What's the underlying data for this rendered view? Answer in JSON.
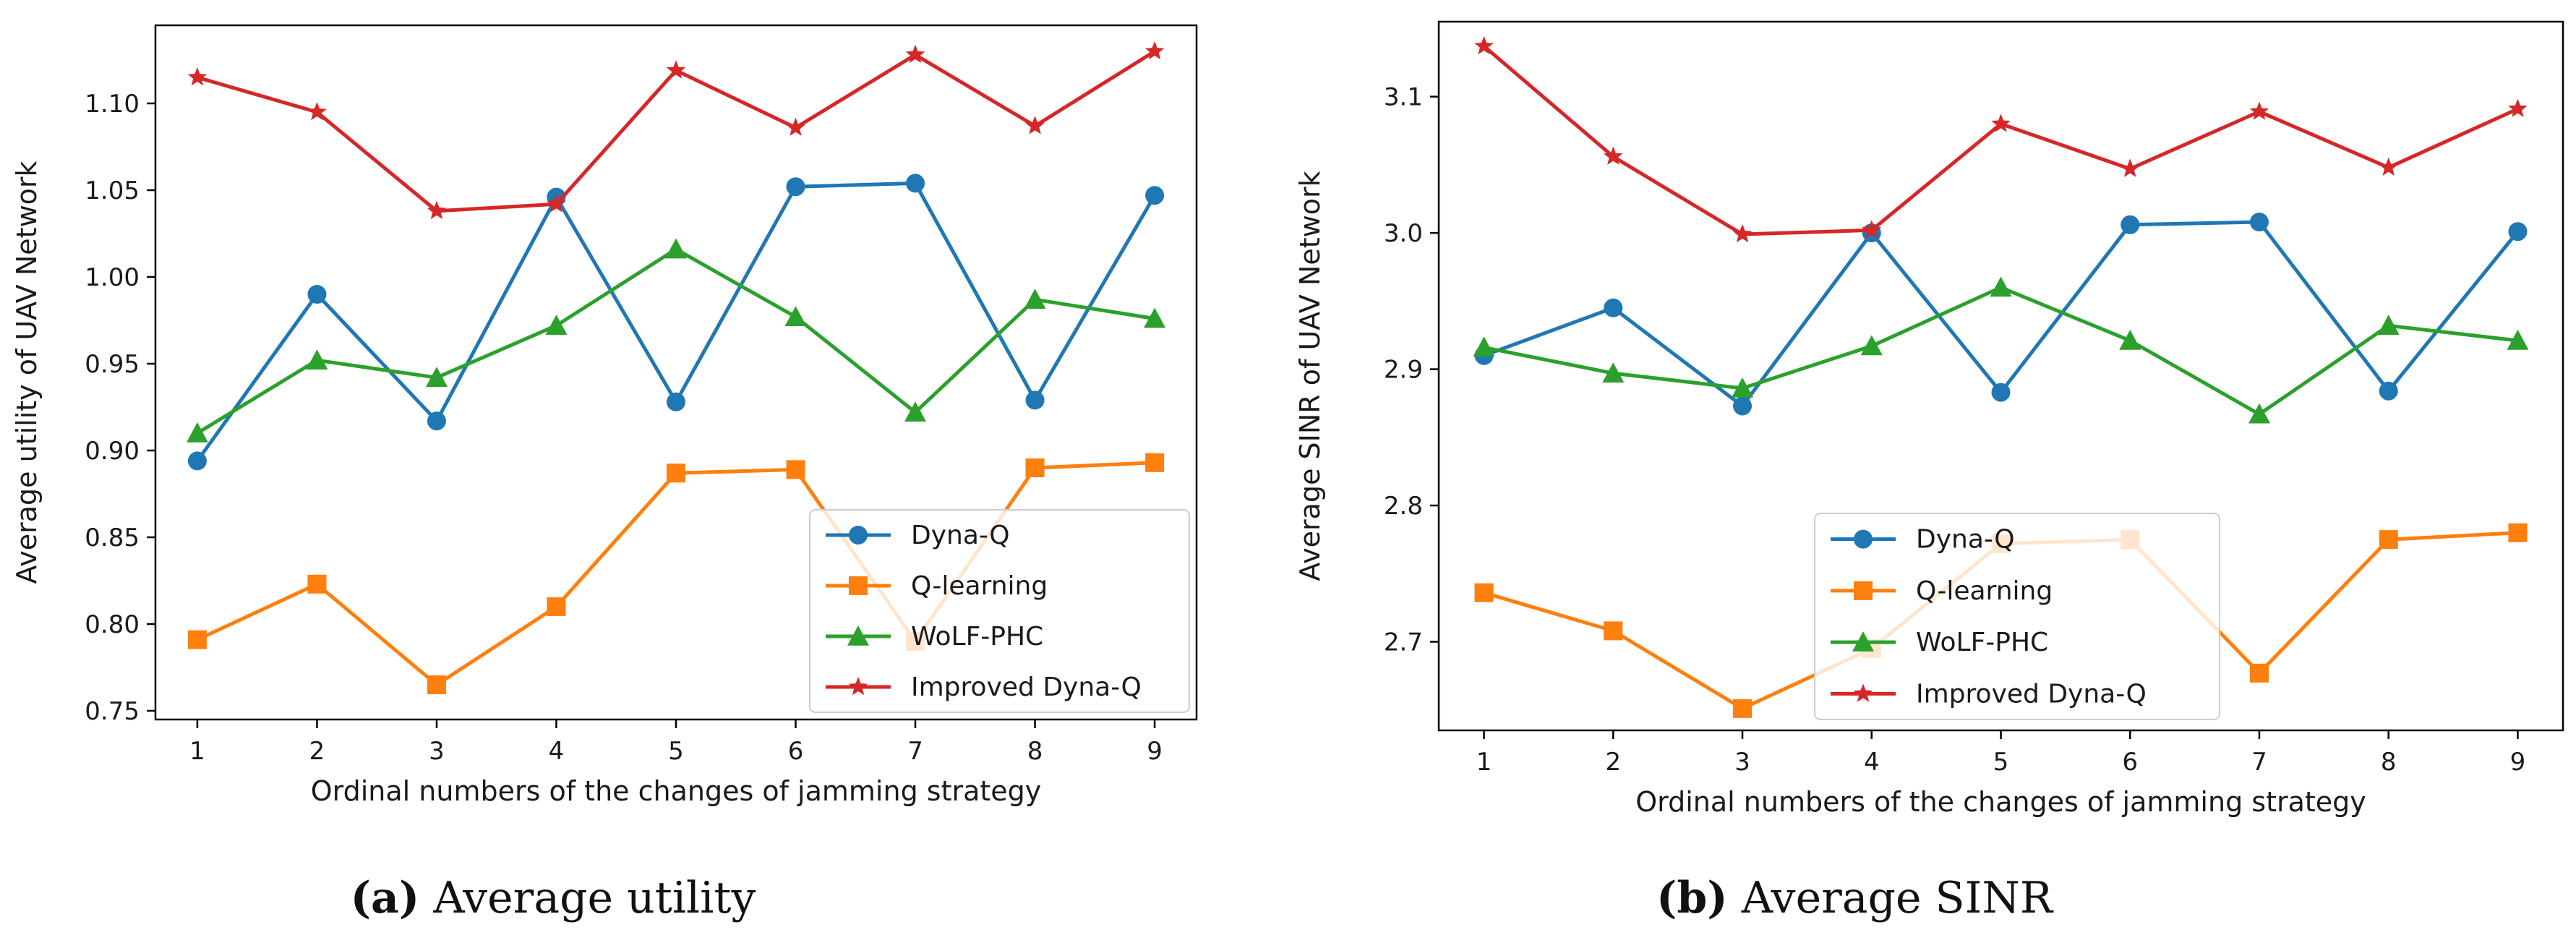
{
  "chart_data": [
    {
      "type": "line",
      "id": "a",
      "x": [
        1,
        2,
        3,
        4,
        5,
        6,
        7,
        8,
        9
      ],
      "xticks": [
        "1",
        "2",
        "3",
        "4",
        "5",
        "6",
        "7",
        "8",
        "9"
      ],
      "xlim": [
        0.65,
        9.35
      ],
      "ylim": [
        0.745,
        1.145
      ],
      "yticks": [
        0.75,
        0.8,
        0.85,
        0.9,
        0.95,
        1.0,
        1.05,
        1.1
      ],
      "ytick_labels": [
        "0.75",
        "0.80",
        "0.85",
        "0.90",
        "0.95",
        "1.00",
        "1.05",
        "1.10"
      ],
      "xlabel": "Ordinal numbers of the changes of jamming strategy",
      "ylabel": "Average utility of UAV Network",
      "legend_position": "lower-right",
      "caption_bold": "(a)",
      "caption_text": "Average utility",
      "series": [
        {
          "name": "Dyna-Q",
          "color": "#1f77b4",
          "marker": "circle",
          "values": [
            0.894,
            0.99,
            0.917,
            1.046,
            0.928,
            1.052,
            1.054,
            0.929,
            1.047
          ]
        },
        {
          "name": "Q-learning",
          "color": "#ff7f0e",
          "marker": "square",
          "values": [
            0.791,
            0.823,
            0.765,
            0.81,
            0.887,
            0.889,
            0.79,
            0.89,
            0.893
          ]
        },
        {
          "name": "WoLF-PHC",
          "color": "#2ca02c",
          "marker": "triangle",
          "values": [
            0.91,
            0.952,
            0.942,
            0.972,
            1.016,
            0.977,
            0.922,
            0.987,
            0.976
          ]
        },
        {
          "name": "Improved Dyna-Q",
          "color": "#d62728",
          "marker": "star",
          "values": [
            1.115,
            1.095,
            1.038,
            1.042,
            1.119,
            1.086,
            1.128,
            1.087,
            1.13
          ]
        }
      ]
    },
    {
      "type": "line",
      "id": "b",
      "x": [
        1,
        2,
        3,
        4,
        5,
        6,
        7,
        8,
        9
      ],
      "xticks": [
        "1",
        "2",
        "3",
        "4",
        "5",
        "6",
        "7",
        "8",
        "9"
      ],
      "xlim": [
        0.65,
        9.35
      ],
      "ylim": [
        2.635,
        3.155
      ],
      "yticks": [
        2.7,
        2.8,
        2.9,
        3.0,
        3.1
      ],
      "ytick_labels": [
        "2.7",
        "2.8",
        "2.9",
        "3.0",
        "3.1"
      ],
      "xlabel": "Ordinal numbers of the changes of jamming strategy",
      "ylabel": "Average SINR of UAV Network",
      "legend_position": "lower-left",
      "caption_bold": "(b)",
      "caption_text": "Average SINR",
      "series": [
        {
          "name": "Dyna-Q",
          "color": "#1f77b4",
          "marker": "circle",
          "values": [
            2.91,
            2.945,
            2.873,
            3.0,
            2.883,
            3.006,
            3.008,
            2.884,
            3.001
          ]
        },
        {
          "name": "Q-learning",
          "color": "#ff7f0e",
          "marker": "square",
          "values": [
            2.736,
            2.708,
            2.651,
            2.695,
            2.772,
            2.775,
            2.677,
            2.775,
            2.78
          ]
        },
        {
          "name": "WoLF-PHC",
          "color": "#2ca02c",
          "marker": "triangle",
          "values": [
            2.916,
            2.897,
            2.886,
            2.917,
            2.96,
            2.921,
            2.867,
            2.932,
            2.921
          ]
        },
        {
          "name": "Improved Dyna-Q",
          "color": "#d62728",
          "marker": "star",
          "values": [
            3.137,
            3.056,
            2.999,
            3.002,
            3.08,
            3.047,
            3.089,
            3.048,
            3.091
          ]
        }
      ]
    }
  ]
}
